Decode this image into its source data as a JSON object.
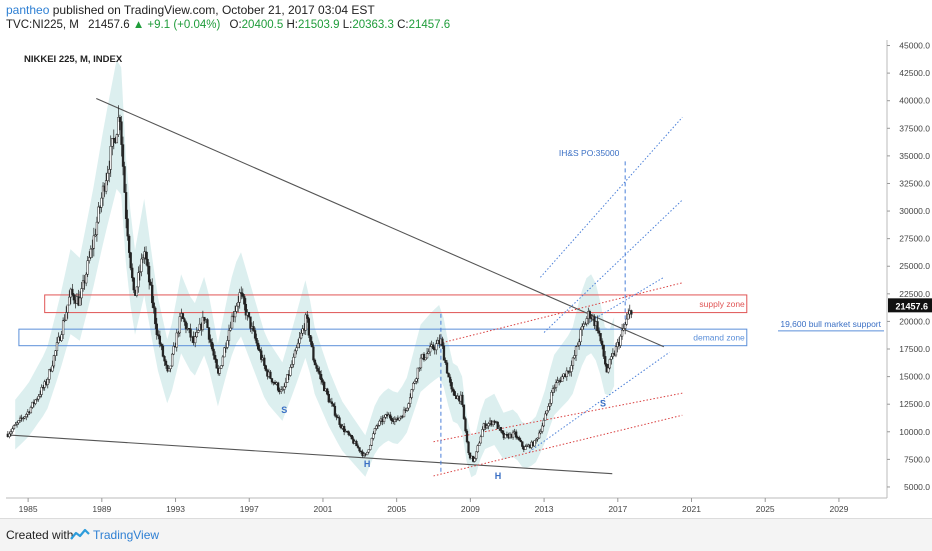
{
  "header": {
    "author": "pantheo",
    "published_text": "published on TradingView.com, October 21, 2017 03:04 EST",
    "symbol": "TVC:NI225, M",
    "last": "21457.6",
    "change": "▲ +9.1 (+0.04%)",
    "open_label": "O:",
    "open": "20400.5",
    "high_label": "H:",
    "high": "21503.9",
    "low_label": "L:",
    "low": "20363.3",
    "close_label": "C:",
    "close": "21457.6"
  },
  "footer": {
    "created_with": "Created with",
    "brand": "TradingView"
  },
  "colors": {
    "candle": "#222222",
    "cloud": "#d6ecec",
    "trendline": "#555555",
    "supply": "#e05555",
    "demand": "#5b8fd9",
    "channel_red": "#d94040",
    "channel_blue": "#4a7fd8",
    "label_blue": "#3a6fc4",
    "axis_text": "#444444",
    "grid": "#eeeeee"
  },
  "chart_data": {
    "type": "candlestick",
    "title": "NIKKEI 225, M, INDEX",
    "x_ticks": [
      "1985",
      "1989",
      "1993",
      "1997",
      "2001",
      "2005",
      "2009",
      "2013",
      "2017",
      "2021",
      "2025",
      "2029"
    ],
    "y_ticks": [
      "45000.0",
      "42500.0",
      "40000.0",
      "37500.0",
      "35000.0",
      "32500.0",
      "30000.0",
      "27500.0",
      "25000.0",
      "22500.0",
      "20000.0",
      "17500.0",
      "15000.0",
      "12500.0",
      "10000.0",
      "7500.0",
      "5000.0"
    ],
    "ylim": [
      4000,
      45500
    ],
    "xlim": [
      1983.8,
      2031.5
    ],
    "price_path": [
      [
        1983.9,
        9800
      ],
      [
        1985.0,
        11800
      ],
      [
        1986.0,
        14500
      ],
      [
        1986.7,
        18500
      ],
      [
        1987.3,
        22500
      ],
      [
        1987.8,
        21800
      ],
      [
        1988.5,
        27000
      ],
      [
        1989.2,
        33000
      ],
      [
        1989.98,
        38900
      ],
      [
        1990.3,
        30000
      ],
      [
        1990.75,
        22000
      ],
      [
        1991.3,
        26500
      ],
      [
        1992.0,
        19000
      ],
      [
        1992.6,
        15000
      ],
      [
        1993.3,
        20500
      ],
      [
        1994.0,
        18000
      ],
      [
        1994.6,
        20500
      ],
      [
        1995.3,
        15000
      ],
      [
        1996.0,
        20000
      ],
      [
        1996.5,
        22500
      ],
      [
        1997.2,
        19000
      ],
      [
        1997.9,
        15500
      ],
      [
        1998.8,
        13500
      ],
      [
        1999.4,
        16500
      ],
      [
        2000.1,
        20300
      ],
      [
        2000.5,
        16500
      ],
      [
        2001.3,
        13000
      ],
      [
        2002.0,
        10500
      ],
      [
        2002.6,
        9200
      ],
      [
        2003.3,
        7700
      ],
      [
        2003.9,
        10500
      ],
      [
        2004.5,
        11500
      ],
      [
        2005.0,
        11000
      ],
      [
        2005.5,
        12000
      ],
      [
        2006.3,
        16500
      ],
      [
        2006.9,
        17500
      ],
      [
        2007.4,
        18200
      ],
      [
        2008.0,
        13500
      ],
      [
        2008.5,
        13000
      ],
      [
        2008.9,
        8000
      ],
      [
        2009.2,
        7300
      ],
      [
        2009.7,
        10500
      ],
      [
        2010.3,
        11000
      ],
      [
        2010.8,
        9500
      ],
      [
        2011.4,
        9800
      ],
      [
        2011.9,
        8500
      ],
      [
        2012.5,
        9000
      ],
      [
        2013.0,
        11000
      ],
      [
        2013.5,
        14000
      ],
      [
        2014.0,
        15000
      ],
      [
        2014.5,
        16000
      ],
      [
        2015.0,
        19000
      ],
      [
        2015.45,
        20800
      ],
      [
        2015.9,
        19500
      ],
      [
        2016.4,
        15500
      ],
      [
        2016.9,
        17500
      ],
      [
        2017.3,
        19200
      ],
      [
        2017.8,
        21457
      ]
    ],
    "annotations": [
      {
        "text": "supply zone",
        "kind": "zone",
        "low": 20800,
        "high": 22400,
        "x0": 1985.9,
        "x1": 2024.0
      },
      {
        "text": "demand zone",
        "kind": "zone",
        "low": 17800,
        "high": 19300,
        "x0": 1984.5,
        "x1": 2024.0
      },
      {
        "text": "19,600 bull market support",
        "kind": "level",
        "value": 19600
      },
      {
        "text": "IH&S PO:35000",
        "kind": "label",
        "x": 2013.8,
        "y": 35000
      },
      {
        "text": "S",
        "kind": "pattern",
        "x": 1998.9,
        "y": 11700
      },
      {
        "text": "H",
        "kind": "pattern",
        "x": 2003.4,
        "y": 6800
      },
      {
        "text": "H",
        "kind": "pattern",
        "x": 2010.5,
        "y": 5700
      },
      {
        "text": "S",
        "kind": "pattern",
        "x": 2016.2,
        "y": 12300
      }
    ],
    "trendlines": [
      {
        "name": "upper",
        "x0": 1988.7,
        "y0": 40200,
        "x1": 2019.5,
        "y1": 17700
      },
      {
        "name": "lower",
        "x0": 1984.0,
        "y0": 9700,
        "x1": 2016.7,
        "y1": 6200
      }
    ],
    "last_price_label": "21457.6",
    "grid": false,
    "legend": "none"
  }
}
